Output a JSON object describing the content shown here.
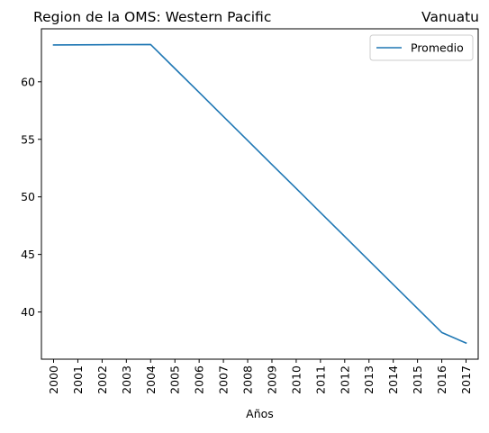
{
  "chart_data": {
    "type": "line",
    "title_left": "Region de la OMS: Western Pacific",
    "title_right": "Vanuatu",
    "xlabel": "Años",
    "ylabel": "",
    "categories": [
      "2000",
      "2001",
      "2002",
      "2003",
      "2004",
      "2005",
      "2006",
      "2007",
      "2008",
      "2009",
      "2010",
      "2011",
      "2012",
      "2013",
      "2014",
      "2015",
      "2016",
      "2017"
    ],
    "series": [
      {
        "name": "Promedio",
        "color": "#1f77b4",
        "values": [
          63.2,
          63.21,
          63.22,
          63.23,
          63.24,
          61.15,
          59.07,
          56.98,
          54.9,
          52.81,
          50.73,
          48.64,
          46.56,
          44.47,
          42.39,
          40.3,
          38.22,
          37.3
        ]
      }
    ],
    "yticks": [
      40,
      45,
      50,
      55,
      60
    ],
    "ylim": [
      35.9,
      64.6
    ],
    "grid": false,
    "legend_position": "top-right"
  }
}
